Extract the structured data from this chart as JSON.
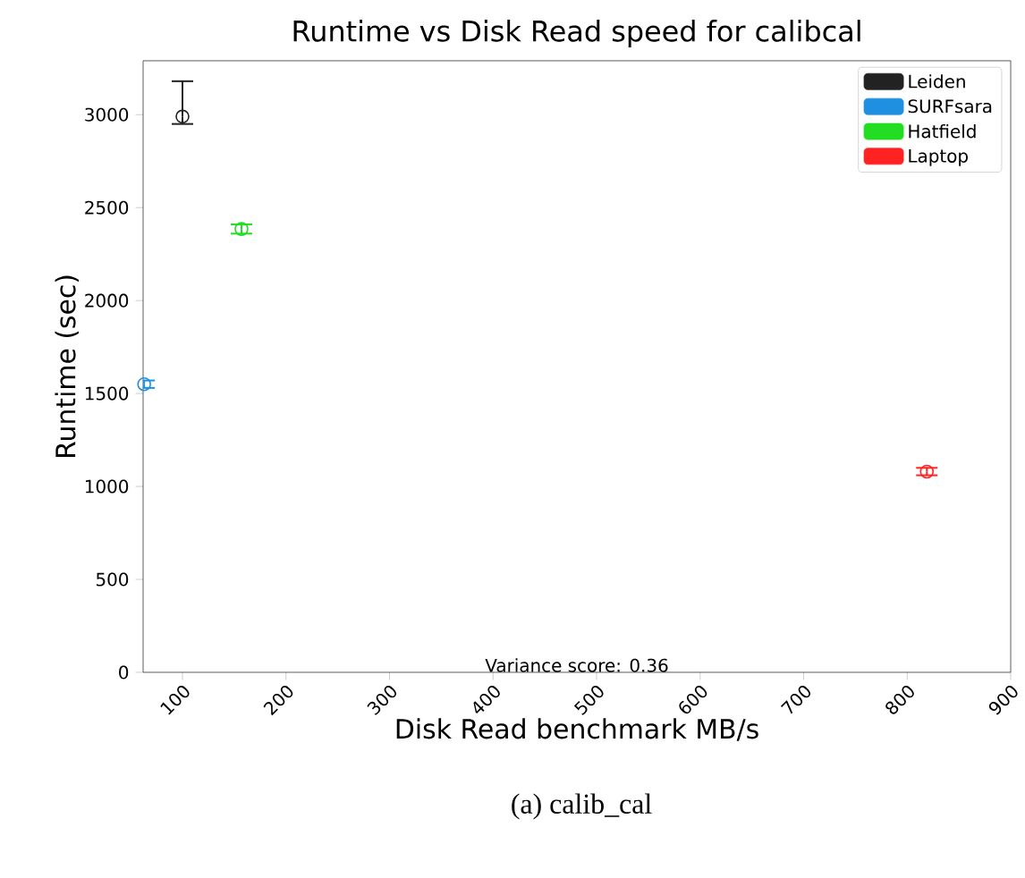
{
  "chart_data": {
    "type": "scatter",
    "title": "Runtime vs Disk Read speed for calibcal",
    "xlabel": "Disk Read benchmark MB/s",
    "ylabel": "Runtime (sec)",
    "annotations": [
      "Variance score: 0.36",
      "(a) calib_cal"
    ],
    "xlim": [
      62,
      900
    ],
    "ylim": [
      0,
      3290
    ],
    "xticks": [
      100,
      200,
      300,
      400,
      500,
      600,
      700,
      800,
      900
    ],
    "yticks": [
      0,
      500,
      1000,
      1500,
      2000,
      2500,
      3000
    ],
    "legend": "top right",
    "marker": "circle",
    "series": [
      {
        "name": "Leiden",
        "color": "#222222",
        "x": [
          100
        ],
        "values": [
          2990
        ],
        "errors": [
          [
            2950,
            3180
          ]
        ]
      },
      {
        "name": "SURFsara",
        "color": "#1f8fe0",
        "x": [
          63
        ],
        "values": [
          1550
        ],
        "errors": [
          [
            1530,
            1570
          ]
        ]
      },
      {
        "name": "Hatfield",
        "color": "#22dd22",
        "x": [
          157
        ],
        "values": [
          2385
        ],
        "errors": [
          [
            2360,
            2410
          ]
        ]
      },
      {
        "name": "Laptop",
        "color": "#ff2222",
        "x": [
          819
        ],
        "values": [
          1080
        ],
        "errors": [
          [
            1060,
            1100
          ]
        ]
      }
    ]
  }
}
